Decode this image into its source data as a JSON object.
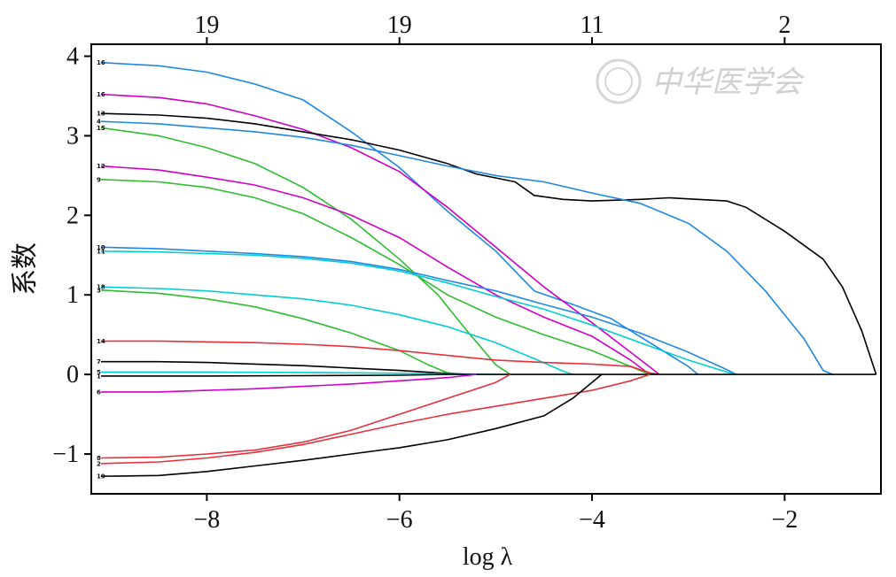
{
  "chart_data": {
    "type": "line",
    "xlabel": "log λ",
    "ylabel": "系数",
    "xlim": [
      -9.2,
      -1.0
    ],
    "ylim": [
      -1.5,
      4.15
    ],
    "x_ticks": [
      -8,
      -6,
      -4,
      -2
    ],
    "x_tick_labels": [
      "−8",
      "−6",
      "−4",
      "−2"
    ],
    "y_ticks": [
      -1,
      0,
      1,
      2,
      3,
      4
    ],
    "y_tick_labels": [
      "−1",
      "0",
      "1",
      "2",
      "3",
      "4"
    ],
    "top_axis": {
      "positions": [
        -8,
        -6,
        -4,
        -2
      ],
      "labels": [
        "19",
        "19",
        "11",
        "2"
      ]
    },
    "grid": false,
    "watermark": "中华医学会",
    "series": [
      {
        "name": "16",
        "color": "#1E88E5",
        "points": [
          [
            -9.1,
            3.92
          ],
          [
            -8.5,
            3.88
          ],
          [
            -8,
            3.8
          ],
          [
            -7.5,
            3.65
          ],
          [
            -7,
            3.45
          ],
          [
            -6.5,
            3.05
          ],
          [
            -6,
            2.6
          ],
          [
            -5.5,
            2.05
          ],
          [
            -5,
            1.55
          ],
          [
            -4.6,
            1.05
          ],
          [
            -4.2,
            0.88
          ],
          [
            -3.8,
            0.7
          ],
          [
            -3.4,
            0.4
          ],
          [
            -3.0,
            0.1
          ],
          [
            -2.9,
            0
          ]
        ]
      },
      {
        "name": "16",
        "color": "#D000C8",
        "points": [
          [
            -9.1,
            3.52
          ],
          [
            -8.5,
            3.48
          ],
          [
            -8,
            3.4
          ],
          [
            -7.5,
            3.25
          ],
          [
            -7,
            3.08
          ],
          [
            -6.5,
            2.85
          ],
          [
            -6,
            2.55
          ],
          [
            -5.5,
            2.1
          ],
          [
            -5,
            1.6
          ],
          [
            -4.5,
            1.1
          ],
          [
            -4,
            0.65
          ],
          [
            -3.6,
            0.28
          ],
          [
            -3.3,
            0
          ]
        ]
      },
      {
        "name": "13",
        "color": "#000000",
        "points": [
          [
            -9.1,
            3.28
          ],
          [
            -8.5,
            3.26
          ],
          [
            -8,
            3.22
          ],
          [
            -7.5,
            3.15
          ],
          [
            -7,
            3.05
          ],
          [
            -6.5,
            2.95
          ],
          [
            -6,
            2.82
          ],
          [
            -5.5,
            2.65
          ],
          [
            -5.2,
            2.52
          ],
          [
            -4.8,
            2.42
          ],
          [
            -4.6,
            2.25
          ],
          [
            -4.3,
            2.2
          ],
          [
            -4,
            2.18
          ],
          [
            -3.5,
            2.2
          ],
          [
            -3.2,
            2.22
          ],
          [
            -2.9,
            2.2
          ],
          [
            -2.6,
            2.18
          ],
          [
            -2.4,
            2.1
          ],
          [
            -2.0,
            1.8
          ],
          [
            -1.6,
            1.45
          ],
          [
            -1.4,
            1.1
          ],
          [
            -1.2,
            0.55
          ],
          [
            -1.05,
            0
          ]
        ]
      },
      {
        "name": "4",
        "color": "#1E88E5",
        "points": [
          [
            -9.1,
            3.18
          ],
          [
            -8.5,
            3.15
          ],
          [
            -8,
            3.1
          ],
          [
            -7.5,
            3.05
          ],
          [
            -7,
            2.98
          ],
          [
            -6.5,
            2.88
          ],
          [
            -6,
            2.75
          ],
          [
            -5.5,
            2.62
          ],
          [
            -5,
            2.5
          ],
          [
            -4.5,
            2.42
          ],
          [
            -4,
            2.28
          ],
          [
            -3.5,
            2.15
          ],
          [
            -3,
            1.9
          ],
          [
            -2.6,
            1.55
          ],
          [
            -2.2,
            1.05
          ],
          [
            -1.8,
            0.45
          ],
          [
            -1.6,
            0.05
          ],
          [
            -1.5,
            0
          ]
        ]
      },
      {
        "name": "15",
        "color": "#2EBD2E",
        "points": [
          [
            -9.1,
            3.1
          ],
          [
            -8.5,
            3.0
          ],
          [
            -8,
            2.85
          ],
          [
            -7.5,
            2.65
          ],
          [
            -7,
            2.35
          ],
          [
            -6.5,
            1.95
          ],
          [
            -6,
            1.45
          ],
          [
            -5.6,
            1.0
          ],
          [
            -5.3,
            0.55
          ],
          [
            -5.0,
            0.12
          ],
          [
            -4.85,
            0
          ]
        ]
      },
      {
        "name": "12",
        "color": "#D000C8",
        "points": [
          [
            -9.1,
            2.62
          ],
          [
            -8.5,
            2.57
          ],
          [
            -8,
            2.48
          ],
          [
            -7.5,
            2.38
          ],
          [
            -7,
            2.22
          ],
          [
            -6.5,
            2.0
          ],
          [
            -6,
            1.72
          ],
          [
            -5.5,
            1.35
          ],
          [
            -5,
            1.0
          ],
          [
            -4.5,
            0.72
          ],
          [
            -4,
            0.48
          ],
          [
            -3.6,
            0.18
          ],
          [
            -3.4,
            0
          ]
        ]
      },
      {
        "name": "9",
        "color": "#2EBD2E",
        "points": [
          [
            -9.1,
            2.45
          ],
          [
            -8.5,
            2.42
          ],
          [
            -8,
            2.35
          ],
          [
            -7.5,
            2.22
          ],
          [
            -7,
            2.02
          ],
          [
            -6.5,
            1.72
          ],
          [
            -6,
            1.38
          ],
          [
            -5.5,
            1.0
          ],
          [
            -5,
            0.72
          ],
          [
            -4.5,
            0.5
          ],
          [
            -4,
            0.3
          ],
          [
            -3.6,
            0.1
          ],
          [
            -3.4,
            0
          ]
        ]
      },
      {
        "name": "10",
        "color": "#1E88E5",
        "points": [
          [
            -9.1,
            1.6
          ],
          [
            -8.5,
            1.58
          ],
          [
            -8,
            1.55
          ],
          [
            -7.5,
            1.52
          ],
          [
            -7,
            1.48
          ],
          [
            -6.5,
            1.42
          ],
          [
            -6,
            1.32
          ],
          [
            -5.5,
            1.18
          ],
          [
            -5,
            1.05
          ],
          [
            -4.5,
            0.88
          ],
          [
            -4,
            0.72
          ],
          [
            -3.5,
            0.52
          ],
          [
            -3,
            0.28
          ],
          [
            -2.6,
            0.06
          ],
          [
            -2.5,
            0
          ]
        ]
      },
      {
        "name": "11",
        "color": "#00CED1",
        "points": [
          [
            -9.1,
            1.55
          ],
          [
            -8.5,
            1.54
          ],
          [
            -8,
            1.52
          ],
          [
            -7.5,
            1.5
          ],
          [
            -7,
            1.46
          ],
          [
            -6.5,
            1.4
          ],
          [
            -6,
            1.3
          ],
          [
            -5.5,
            1.15
          ],
          [
            -5,
            0.98
          ],
          [
            -4.5,
            0.82
          ],
          [
            -4,
            0.62
          ],
          [
            -3.5,
            0.4
          ],
          [
            -3,
            0.18
          ],
          [
            -2.6,
            0.03
          ],
          [
            -2.5,
            0
          ]
        ]
      },
      {
        "name": "18",
        "color": "#00CED1",
        "points": [
          [
            -9.1,
            1.1
          ],
          [
            -8.5,
            1.08
          ],
          [
            -8,
            1.05
          ],
          [
            -7.5,
            1.0
          ],
          [
            -7,
            0.95
          ],
          [
            -6.5,
            0.87
          ],
          [
            -6,
            0.75
          ],
          [
            -5.5,
            0.6
          ],
          [
            -5,
            0.4
          ],
          [
            -4.6,
            0.2
          ],
          [
            -4.3,
            0.04
          ],
          [
            -4.2,
            0
          ]
        ]
      },
      {
        "name": "3",
        "color": "#2EBD2E",
        "points": [
          [
            -9.1,
            1.06
          ],
          [
            -8.5,
            1.02
          ],
          [
            -8,
            0.95
          ],
          [
            -7.5,
            0.85
          ],
          [
            -7,
            0.7
          ],
          [
            -6.5,
            0.52
          ],
          [
            -6,
            0.3
          ],
          [
            -5.7,
            0.12
          ],
          [
            -5.5,
            0.02
          ],
          [
            -5.3,
            0
          ]
        ]
      },
      {
        "name": "14",
        "color": "#E8303C",
        "points": [
          [
            -9.1,
            0.42
          ],
          [
            -8.5,
            0.42
          ],
          [
            -8,
            0.41
          ],
          [
            -7.5,
            0.4
          ],
          [
            -7,
            0.38
          ],
          [
            -6.5,
            0.35
          ],
          [
            -6,
            0.3
          ],
          [
            -5.5,
            0.24
          ],
          [
            -5,
            0.18
          ],
          [
            -4.5,
            0.15
          ],
          [
            -4,
            0.13
          ],
          [
            -3.6,
            0.1
          ],
          [
            -3.4,
            0.02
          ],
          [
            -3.3,
            0
          ]
        ]
      },
      {
        "name": "7",
        "color": "#000000",
        "points": [
          [
            -9.1,
            0.16
          ],
          [
            -8.5,
            0.16
          ],
          [
            -8,
            0.15
          ],
          [
            -7.5,
            0.13
          ],
          [
            -7,
            0.11
          ],
          [
            -6.5,
            0.08
          ],
          [
            -6,
            0.05
          ],
          [
            -5.6,
            0.02
          ],
          [
            -5.3,
            0
          ]
        ]
      },
      {
        "name": "5",
        "color": "#00CED1",
        "points": [
          [
            -9.1,
            0.03
          ],
          [
            -8,
            0.03
          ],
          [
            -7,
            0.025
          ],
          [
            -6,
            0.015
          ],
          [
            -5.3,
            0.005
          ],
          [
            -5.0,
            0
          ]
        ]
      },
      {
        "name": "1",
        "color": "#000000",
        "points": [
          [
            -9.1,
            -0.02
          ],
          [
            -8,
            -0.02
          ],
          [
            -7,
            -0.015
          ],
          [
            -6,
            -0.01
          ],
          [
            -5.5,
            0
          ],
          [
            -1.05,
            0
          ]
        ]
      },
      {
        "name": "6",
        "color": "#D000C8",
        "points": [
          [
            -9.1,
            -0.22
          ],
          [
            -8.5,
            -0.22
          ],
          [
            -8,
            -0.2
          ],
          [
            -7.5,
            -0.18
          ],
          [
            -7,
            -0.15
          ],
          [
            -6.5,
            -0.12
          ],
          [
            -6,
            -0.08
          ],
          [
            -5.5,
            -0.04
          ],
          [
            -5.2,
            0
          ]
        ]
      },
      {
        "name": "8",
        "color": "#E8303C",
        "points": [
          [
            -9.1,
            -1.05
          ],
          [
            -8.5,
            -1.04
          ],
          [
            -8,
            -1.0
          ],
          [
            -7.5,
            -0.95
          ],
          [
            -7,
            -0.85
          ],
          [
            -6.5,
            -0.7
          ],
          [
            -6,
            -0.5
          ],
          [
            -5.5,
            -0.3
          ],
          [
            -5,
            -0.1
          ],
          [
            -4.85,
            0
          ]
        ]
      },
      {
        "name": "2",
        "color": "#E8303C",
        "points": [
          [
            -9.1,
            -1.12
          ],
          [
            -8.5,
            -1.1
          ],
          [
            -8,
            -1.05
          ],
          [
            -7.5,
            -0.98
          ],
          [
            -7,
            -0.88
          ],
          [
            -6.5,
            -0.75
          ],
          [
            -6,
            -0.62
          ],
          [
            -5.5,
            -0.5
          ],
          [
            -5,
            -0.4
          ],
          [
            -4.5,
            -0.3
          ],
          [
            -4,
            -0.2
          ],
          [
            -3.6,
            -0.08
          ],
          [
            -3.4,
            0
          ]
        ]
      },
      {
        "name": "19",
        "color": "#000000",
        "points": [
          [
            -9.1,
            -1.28
          ],
          [
            -8.5,
            -1.27
          ],
          [
            -8,
            -1.22
          ],
          [
            -7.5,
            -1.15
          ],
          [
            -7,
            -1.08
          ],
          [
            -6.5,
            -1.0
          ],
          [
            -6,
            -0.92
          ],
          [
            -5.5,
            -0.82
          ],
          [
            -5,
            -0.68
          ],
          [
            -4.5,
            -0.52
          ],
          [
            -4.2,
            -0.3
          ],
          [
            -4.0,
            -0.1
          ],
          [
            -3.9,
            0
          ]
        ]
      }
    ]
  }
}
